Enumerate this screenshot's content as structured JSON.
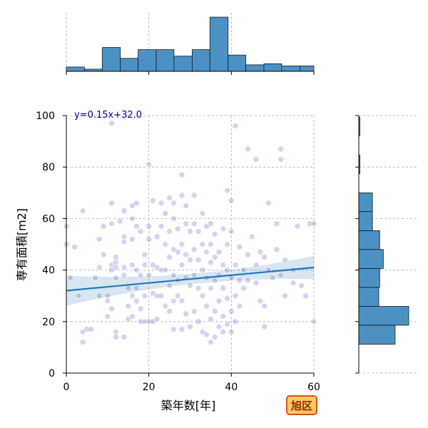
{
  "chart_data": {
    "type": "scatter",
    "xlabel": "築年数[年]",
    "ylabel": "専有面積[m2]",
    "xlim": [
      0,
      60
    ],
    "ylim": [
      0,
      100
    ],
    "x_ticks": [
      "0",
      "20",
      "40",
      "60"
    ],
    "y_ticks": [
      "0",
      "20",
      "40",
      "60",
      "80",
      "100"
    ],
    "grid": true,
    "regression": {
      "equation": "y=0.15x+32.0",
      "slope": 0.15,
      "intercept": 32.0,
      "color": "#1f77b4"
    },
    "point_color": "#3f3fbf",
    "hist_color": "#4c91c4",
    "badge": {
      "text": "旭区",
      "fill": "#ffc864",
      "border": "#e0501a"
    },
    "top_hist": {
      "bin_edges": [
        0,
        4.4,
        8.7,
        13.1,
        17.4,
        21.8,
        26.1,
        30.5,
        34.8,
        39.2,
        43.5,
        47.9,
        52.2,
        56.6,
        60.9
      ],
      "counts": [
        4,
        2,
        22,
        12,
        20,
        20,
        14,
        20,
        50,
        15,
        6,
        7,
        5,
        5
      ]
    },
    "right_hist": {
      "bin_edges": [
        11.2,
        18.6,
        25.9,
        33.3,
        40.6,
        48.0,
        55.3,
        62.7,
        70.0,
        77.4,
        84.7,
        92.1,
        99.4
      ],
      "counts": [
        40,
        55,
        22,
        23,
        27,
        23,
        15,
        15,
        0,
        1,
        0,
        1
      ]
    },
    "points": [
      [
        0,
        57
      ],
      [
        0,
        50
      ],
      [
        2,
        49
      ],
      [
        1,
        37
      ],
      [
        3,
        30
      ],
      [
        4,
        63
      ],
      [
        5,
        17
      ],
      [
        4,
        16
      ],
      [
        4,
        12
      ],
      [
        6,
        17
      ],
      [
        7,
        37
      ],
      [
        8,
        30
      ],
      [
        8,
        41
      ],
      [
        8,
        52
      ],
      [
        9,
        57
      ],
      [
        9,
        46
      ],
      [
        10,
        30
      ],
      [
        10,
        28
      ],
      [
        10,
        22
      ],
      [
        11,
        97
      ],
      [
        11,
        66
      ],
      [
        11,
        58
      ],
      [
        11,
        42
      ],
      [
        11,
        40
      ],
      [
        11,
        25
      ],
      [
        12,
        45
      ],
      [
        12,
        43
      ],
      [
        12,
        41
      ],
      [
        12,
        37
      ],
      [
        12,
        16
      ],
      [
        12,
        14
      ],
      [
        13,
        59
      ],
      [
        14,
        63
      ],
      [
        14,
        53
      ],
      [
        14,
        51
      ],
      [
        14,
        41
      ],
      [
        14,
        38
      ],
      [
        14,
        14
      ],
      [
        15,
        21
      ],
      [
        15,
        33
      ],
      [
        15,
        26
      ],
      [
        16,
        65
      ],
      [
        16,
        60
      ],
      [
        16,
        52
      ],
      [
        16,
        42
      ],
      [
        16,
        30
      ],
      [
        16,
        22
      ],
      [
        17,
        66
      ],
      [
        17,
        57
      ],
      [
        17,
        40
      ],
      [
        17,
        33
      ],
      [
        17,
        28
      ],
      [
        18,
        55
      ],
      [
        18,
        38
      ],
      [
        18,
        25
      ],
      [
        18,
        20
      ],
      [
        19,
        46
      ],
      [
        19,
        42
      ],
      [
        19,
        30
      ],
      [
        19,
        20
      ],
      [
        20,
        81
      ],
      [
        20,
        57
      ],
      [
        20,
        52
      ],
      [
        20,
        38
      ],
      [
        20,
        20
      ],
      [
        21,
        67
      ],
      [
        21,
        42
      ],
      [
        21,
        31
      ],
      [
        21,
        20
      ],
      [
        22,
        53
      ],
      [
        22,
        41
      ],
      [
        22,
        30
      ],
      [
        22,
        21
      ],
      [
        23,
        66
      ],
      [
        23,
        57
      ],
      [
        23,
        40
      ],
      [
        23,
        30
      ],
      [
        24,
        62
      ],
      [
        24,
        50
      ],
      [
        24,
        40
      ],
      [
        24,
        26
      ],
      [
        25,
        68
      ],
      [
        25,
        55
      ],
      [
        25,
        45
      ],
      [
        25,
        34
      ],
      [
        25,
        24
      ],
      [
        26,
        66
      ],
      [
        26,
        60
      ],
      [
        26,
        48
      ],
      [
        26,
        38
      ],
      [
        26,
        28
      ],
      [
        26,
        17
      ],
      [
        27,
        56
      ],
      [
        27,
        47
      ],
      [
        27,
        36
      ],
      [
        27,
        30
      ],
      [
        28,
        77
      ],
      [
        28,
        69
      ],
      [
        28,
        50
      ],
      [
        28,
        42
      ],
      [
        28,
        28
      ],
      [
        28,
        17
      ],
      [
        29,
        65
      ],
      [
        29,
        58
      ],
      [
        29,
        46
      ],
      [
        29,
        37
      ],
      [
        29,
        23
      ],
      [
        30,
        55
      ],
      [
        30,
        44
      ],
      [
        30,
        34
      ],
      [
        30,
        18
      ],
      [
        31,
        69
      ],
      [
        31,
        58
      ],
      [
        31,
        48
      ],
      [
        31,
        38
      ],
      [
        31,
        24
      ],
      [
        32,
        55
      ],
      [
        32,
        44
      ],
      [
        32,
        33
      ],
      [
        32,
        20
      ],
      [
        33,
        62
      ],
      [
        33,
        50
      ],
      [
        33,
        40
      ],
      [
        33,
        30
      ],
      [
        33,
        16
      ],
      [
        34,
        57
      ],
      [
        34,
        47
      ],
      [
        34,
        37
      ],
      [
        34,
        26
      ],
      [
        34,
        15
      ],
      [
        35,
        58
      ],
      [
        35,
        50
      ],
      [
        35,
        43
      ],
      [
        35,
        33
      ],
      [
        35,
        21
      ],
      [
        35,
        12
      ],
      [
        36,
        54
      ],
      [
        36,
        45
      ],
      [
        36,
        36
      ],
      [
        36,
        24
      ],
      [
        36,
        14
      ],
      [
        37,
        47
      ],
      [
        37,
        38
      ],
      [
        37,
        28
      ],
      [
        37,
        18
      ],
      [
        38,
        56
      ],
      [
        38,
        42
      ],
      [
        38,
        33
      ],
      [
        38,
        22
      ],
      [
        38,
        16
      ],
      [
        39,
        71
      ],
      [
        39,
        50
      ],
      [
        39,
        40
      ],
      [
        39,
        29
      ],
      [
        39,
        19
      ],
      [
        40,
        67
      ],
      [
        40,
        55
      ],
      [
        40,
        37
      ],
      [
        40,
        24
      ],
      [
        40,
        16
      ],
      [
        41,
        96
      ],
      [
        41,
        42
      ],
      [
        41,
        30
      ],
      [
        41,
        20
      ],
      [
        42,
        49
      ],
      [
        42,
        36
      ],
      [
        42,
        26
      ],
      [
        43,
        40
      ],
      [
        43,
        33
      ],
      [
        44,
        87
      ],
      [
        44,
        46
      ],
      [
        44,
        36
      ],
      [
        45,
        53
      ],
      [
        46,
        83
      ],
      [
        46,
        42
      ],
      [
        46,
        35
      ],
      [
        47,
        47
      ],
      [
        47,
        28
      ],
      [
        48,
        45
      ],
      [
        48,
        26
      ],
      [
        48,
        18
      ],
      [
        49,
        66
      ],
      [
        49,
        40
      ],
      [
        50,
        37
      ],
      [
        51,
        58
      ],
      [
        51,
        48
      ],
      [
        52,
        87
      ],
      [
        52,
        83
      ],
      [
        52,
        38
      ],
      [
        53,
        44
      ],
      [
        53,
        30
      ],
      [
        55,
        40
      ],
      [
        55,
        35
      ],
      [
        56,
        57
      ],
      [
        57,
        34
      ],
      [
        58,
        30
      ],
      [
        59,
        58
      ],
      [
        60,
        58
      ],
      [
        60,
        20
      ]
    ]
  }
}
